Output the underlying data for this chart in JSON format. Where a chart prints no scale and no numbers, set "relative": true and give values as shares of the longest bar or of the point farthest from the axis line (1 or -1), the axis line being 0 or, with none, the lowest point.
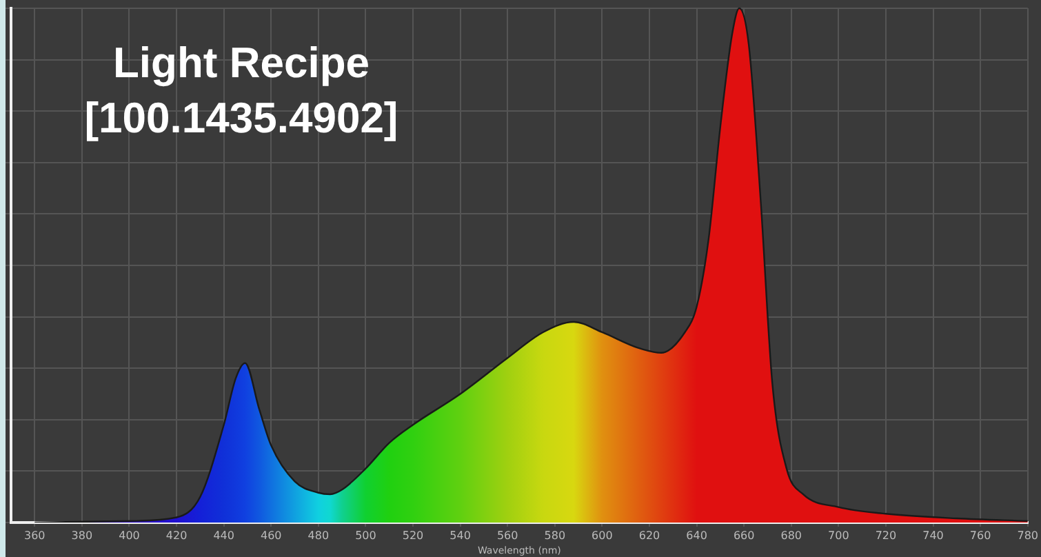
{
  "chart_data": {
    "type": "area",
    "title": "Light Recipe\n[100.1435.4902]",
    "xlabel": "Wavelength (nm)",
    "relative": true,
    "grid": true,
    "legend": false,
    "xlim": [
      350,
      780
    ],
    "xticks": [
      360,
      380,
      400,
      420,
      440,
      460,
      480,
      500,
      520,
      540,
      560,
      580,
      600,
      620,
      640,
      660,
      680,
      700,
      720,
      740,
      760,
      780
    ],
    "x": [
      360,
      400,
      420,
      430,
      440,
      445,
      449,
      455,
      460,
      470,
      480,
      485,
      490,
      500,
      510,
      520,
      540,
      560,
      575,
      588,
      600,
      615,
      625,
      635,
      640,
      645,
      650,
      655,
      658,
      662,
      667,
      672,
      678,
      685,
      700,
      720,
      750,
      780
    ],
    "values": [
      0,
      0.003,
      0.01,
      0.05,
      0.19,
      0.28,
      0.31,
      0.22,
      0.15,
      0.08,
      0.058,
      0.055,
      0.064,
      0.105,
      0.155,
      0.19,
      0.25,
      0.32,
      0.37,
      0.39,
      0.37,
      0.34,
      0.33,
      0.37,
      0.42,
      0.55,
      0.77,
      0.95,
      1,
      0.93,
      0.63,
      0.27,
      0.105,
      0.055,
      0.03,
      0.017,
      0.008,
      0.003
    ],
    "colors": [
      "#3a10c0",
      "#3010c8",
      "#2010d0",
      "#1420d8",
      "#1030d8",
      "#1038dc",
      "#1040e0",
      "#1058e0",
      "#1070e0",
      "#10a0e0",
      "#10d0e0",
      "#10d8d0",
      "#10d090",
      "#10d030",
      "#20d010",
      "#30d010",
      "#60d010",
      "#a0d010",
      "#c8d810",
      "#d8d810",
      "#e09010",
      "#e06010",
      "#e04010",
      "#e02010",
      "#e01010",
      "#e01010",
      "#e01010",
      "#e01010",
      "#e01010",
      "#e01010",
      "#e01010",
      "#e01010",
      "#e01010",
      "#e01010",
      "#e01010",
      "#e01010",
      "#e01010",
      "#e01010"
    ],
    "color": "#1a1a1a"
  }
}
